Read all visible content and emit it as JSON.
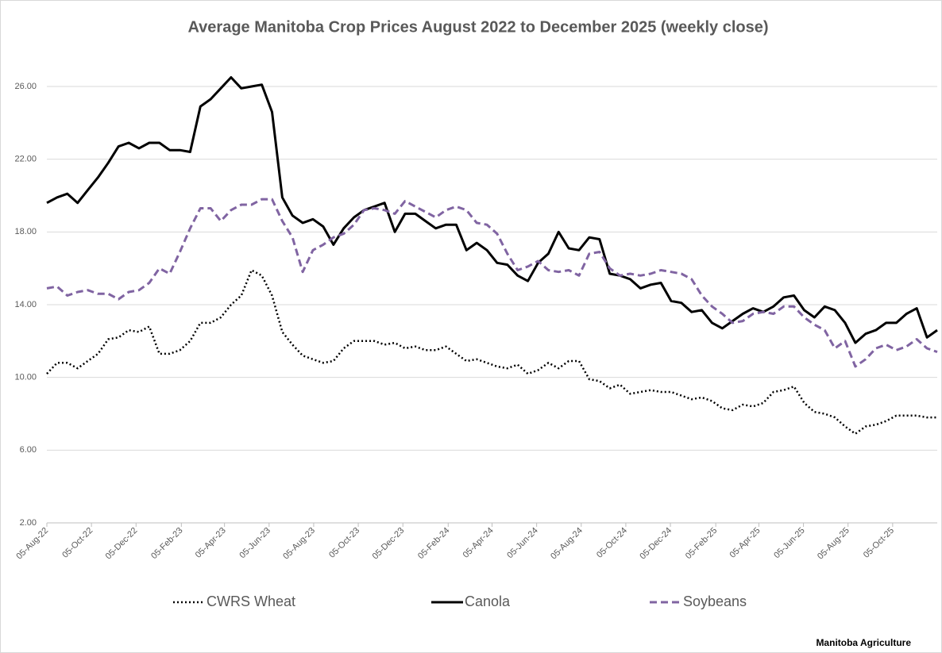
{
  "chart_data": {
    "type": "line",
    "title": "Average Manitoba Crop Prices August 2022 to December 2025 (weekly close)",
    "source": "Manitoba Agriculture",
    "x": [
      "2022-08-05",
      "2022-08-19",
      "2022-09-02",
      "2022-09-16",
      "2022-09-30",
      "2022-10-14",
      "2022-10-28",
      "2022-11-11",
      "2022-11-25",
      "2022-12-09",
      "2022-12-23",
      "2023-01-06",
      "2023-01-20",
      "2023-02-03",
      "2023-02-17",
      "2023-03-03",
      "2023-03-17",
      "2023-03-31",
      "2023-04-14",
      "2023-04-28",
      "2023-05-12",
      "2023-05-26",
      "2023-06-09",
      "2023-06-23",
      "2023-07-07",
      "2023-07-21",
      "2023-08-04",
      "2023-08-18",
      "2023-09-01",
      "2023-09-15",
      "2023-09-29",
      "2023-10-13",
      "2023-10-27",
      "2023-11-10",
      "2023-11-24",
      "2023-12-08",
      "2023-12-22",
      "2024-01-05",
      "2024-01-19",
      "2024-02-02",
      "2024-02-16",
      "2024-03-01",
      "2024-03-15",
      "2024-03-29",
      "2024-04-12",
      "2024-04-26",
      "2024-05-10",
      "2024-05-24",
      "2024-06-07",
      "2024-06-21",
      "2024-07-05",
      "2024-07-19",
      "2024-08-02",
      "2024-08-16",
      "2024-08-30",
      "2024-09-13",
      "2024-09-27",
      "2024-10-11",
      "2024-10-25",
      "2024-11-08",
      "2024-11-22",
      "2024-12-06",
      "2024-12-20",
      "2025-01-03",
      "2025-01-17",
      "2025-01-31",
      "2025-02-14",
      "2025-02-28",
      "2025-03-14",
      "2025-03-28",
      "2025-04-11",
      "2025-04-25",
      "2025-05-09",
      "2025-05-23",
      "2025-06-06",
      "2025-06-20",
      "2025-07-04",
      "2025-07-18",
      "2025-08-01",
      "2025-08-15",
      "2025-08-29",
      "2025-09-12",
      "2025-09-26",
      "2025-10-10",
      "2025-10-24",
      "2025-11-07",
      "2025-11-21",
      "2025-12-05"
    ],
    "series": [
      {
        "name": "CWRS Wheat",
        "color": "#000000",
        "dash": "dotted",
        "values": [
          10.2,
          10.8,
          10.8,
          10.5,
          10.9,
          11.3,
          12.1,
          12.2,
          12.6,
          12.5,
          12.8,
          11.3,
          11.3,
          11.5,
          12.0,
          13.0,
          13.0,
          13.3,
          14.0,
          14.5,
          15.9,
          15.6,
          14.5,
          12.5,
          11.8,
          11.2,
          11.0,
          10.8,
          10.9,
          11.6,
          12.0,
          12.0,
          12.0,
          11.8,
          11.9,
          11.6,
          11.7,
          11.5,
          11.5,
          11.7,
          11.3,
          10.9,
          11.0,
          10.8,
          10.6,
          10.5,
          10.7,
          10.2,
          10.4,
          10.8,
          10.5,
          10.9,
          10.9,
          9.9,
          9.8,
          9.4,
          9.6,
          9.1,
          9.2,
          9.3,
          9.2,
          9.2,
          9.0,
          8.8,
          8.9,
          8.7,
          8.3,
          8.2,
          8.5,
          8.4,
          8.6,
          9.2,
          9.3,
          9.5,
          8.6,
          8.1,
          8.0,
          7.8,
          7.3,
          6.9,
          7.3,
          7.4,
          7.6,
          7.9,
          7.9,
          7.9,
          7.8,
          7.8
        ]
      },
      {
        "name": "Canola",
        "color": "#000000",
        "dash": "solid",
        "values": [
          19.6,
          19.9,
          20.1,
          19.6,
          20.3,
          21.0,
          21.8,
          22.7,
          22.9,
          22.6,
          22.9,
          22.9,
          22.5,
          22.5,
          22.4,
          24.9,
          25.3,
          25.9,
          26.5,
          25.9,
          26.0,
          26.1,
          24.6,
          19.9,
          18.9,
          18.5,
          18.7,
          18.3,
          17.3,
          18.2,
          18.8,
          19.2,
          19.4,
          19.6,
          18.0,
          19.0,
          19.0,
          18.6,
          18.2,
          18.4,
          18.4,
          17.0,
          17.4,
          17.0,
          16.3,
          16.2,
          15.6,
          15.3,
          16.3,
          16.8,
          18.0,
          17.1,
          17.0,
          17.7,
          17.6,
          15.7,
          15.6,
          15.4,
          14.9,
          15.1,
          15.2,
          14.2,
          14.1,
          13.6,
          13.7,
          13.0,
          12.7,
          13.1,
          13.5,
          13.8,
          13.6,
          13.9,
          14.4,
          14.5,
          13.7,
          13.3,
          13.9,
          13.7,
          13.0,
          11.9,
          12.4,
          12.6,
          13.0,
          13.0,
          13.5,
          13.8,
          12.2,
          12.6
        ]
      },
      {
        "name": "Soybeans",
        "color": "#8064a2",
        "dash": "dashed",
        "values": [
          14.9,
          15.0,
          14.5,
          14.7,
          14.8,
          14.6,
          14.6,
          14.3,
          14.7,
          14.8,
          15.2,
          16.0,
          15.7,
          16.9,
          18.2,
          19.3,
          19.3,
          18.6,
          19.2,
          19.5,
          19.5,
          19.8,
          19.8,
          18.6,
          17.7,
          15.8,
          17.0,
          17.3,
          17.7,
          17.9,
          18.4,
          19.2,
          19.3,
          19.2,
          19.0,
          19.7,
          19.4,
          19.1,
          18.8,
          19.2,
          19.4,
          19.2,
          18.5,
          18.4,
          17.9,
          16.8,
          15.9,
          16.1,
          16.4,
          15.9,
          15.8,
          15.9,
          15.6,
          16.8,
          16.9,
          16.0,
          15.6,
          15.7,
          15.6,
          15.7,
          15.9,
          15.8,
          15.7,
          15.4,
          14.5,
          13.9,
          13.5,
          13.0,
          13.1,
          13.5,
          13.6,
          13.5,
          13.9,
          13.9,
          13.3,
          12.9,
          12.6,
          11.6,
          12.0,
          10.6,
          11.0,
          11.6,
          11.8,
          11.5,
          11.7,
          12.1,
          11.6,
          11.4
        ]
      }
    ],
    "xlim": [
      "2022-08-05",
      "2025-12-05"
    ],
    "xticks": [
      {
        "value": "2022-08-05",
        "label": "05-Aug-22"
      },
      {
        "value": "2022-10-05",
        "label": "05-Oct-22"
      },
      {
        "value": "2022-12-05",
        "label": "05-Dec-22"
      },
      {
        "value": "2023-02-05",
        "label": "05-Feb-23"
      },
      {
        "value": "2023-04-05",
        "label": "05-Apr-23"
      },
      {
        "value": "2023-06-05",
        "label": "05-Jun-23"
      },
      {
        "value": "2023-08-05",
        "label": "05-Aug-23"
      },
      {
        "value": "2023-10-05",
        "label": "05-Oct-23"
      },
      {
        "value": "2023-12-05",
        "label": "05-Dec-23"
      },
      {
        "value": "2024-02-05",
        "label": "05-Feb-24"
      },
      {
        "value": "2024-04-05",
        "label": "05-Apr-24"
      },
      {
        "value": "2024-06-05",
        "label": "05-Jun-24"
      },
      {
        "value": "2024-08-05",
        "label": "05-Aug-24"
      },
      {
        "value": "2024-10-05",
        "label": "05-Oct-24"
      },
      {
        "value": "2024-12-05",
        "label": "05-Dec-24"
      },
      {
        "value": "2025-02-05",
        "label": "05-Feb-25"
      },
      {
        "value": "2025-04-05",
        "label": "05-Apr-25"
      },
      {
        "value": "2025-06-05",
        "label": "05-Jun-25"
      },
      {
        "value": "2025-08-05",
        "label": "05-Aug-25"
      },
      {
        "value": "2025-10-05",
        "label": "05-Oct-25"
      }
    ],
    "ylim": [
      2,
      26
    ],
    "yticks": [
      {
        "value": 2,
        "label": "2.00"
      },
      {
        "value": 6,
        "label": "6.00"
      },
      {
        "value": 10,
        "label": "10.00"
      },
      {
        "value": 14,
        "label": "14.00"
      },
      {
        "value": 18,
        "label": "18.00"
      },
      {
        "value": 22,
        "label": "22.00"
      },
      {
        "value": 26,
        "label": "26.00"
      }
    ],
    "grid": true,
    "legend": "bottom"
  }
}
